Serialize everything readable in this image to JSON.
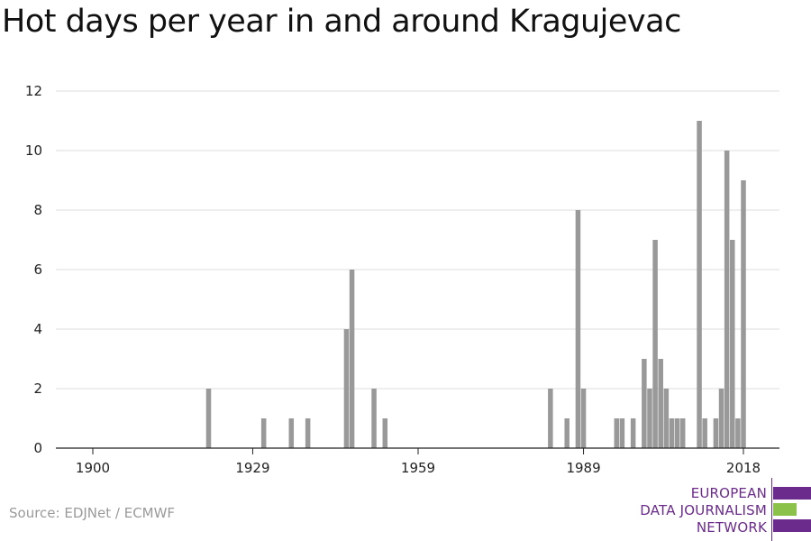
{
  "header": {
    "title": "Hot days per year in and around Kragujevac"
  },
  "footer": {
    "source": "Source: EDJNet / ECMWF"
  },
  "logo": {
    "lines": [
      "EUROPEAN",
      "DATA JOURNALISM",
      "NETWORK"
    ],
    "colors": {
      "purple": "#6b2b8c",
      "green": "#8bc34a"
    }
  },
  "chart_data": {
    "type": "bar",
    "title": "Hot days per year in and around Kragujevac",
    "xlabel": "",
    "ylabel": "",
    "xlim": [
      1900,
      2018
    ],
    "ylim": [
      0,
      12
    ],
    "x_ticks": [
      1900,
      1929,
      1959,
      1989,
      2018
    ],
    "y_ticks": [
      0,
      2,
      4,
      6,
      8,
      10,
      12
    ],
    "grid": true,
    "bar_color": "#999999",
    "x": [
      1921,
      1931,
      1936,
      1939,
      1946,
      1947,
      1951,
      1953,
      1983,
      1986,
      1988,
      1989,
      1995,
      1996,
      1998,
      2000,
      2001,
      2002,
      2003,
      2004,
      2005,
      2006,
      2007,
      2010,
      2011,
      2013,
      2014,
      2015,
      2016,
      2017,
      2018
    ],
    "values": [
      2,
      1,
      1,
      1,
      4,
      6,
      2,
      1,
      2,
      1,
      8,
      2,
      1,
      1,
      1,
      3,
      2,
      7,
      3,
      2,
      1,
      1,
      1,
      11,
      1,
      1,
      2,
      10,
      7,
      1,
      9
    ]
  }
}
